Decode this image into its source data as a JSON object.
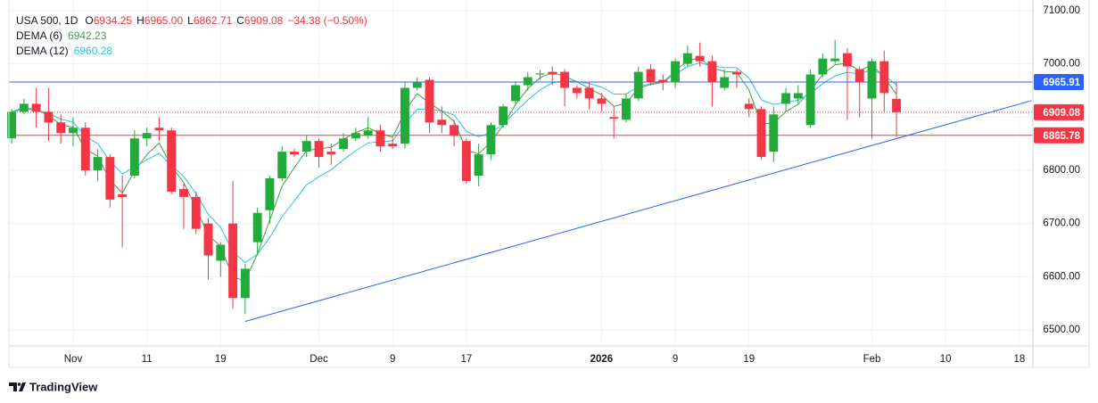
{
  "chart_data": {
    "type": "candlestick",
    "symbol": "USA 500, 1D",
    "ohlc_labels": [
      "O",
      "H",
      "L",
      "C"
    ],
    "ohlc_text": [
      "6934.25",
      "6965.00",
      "6862.71",
      "6909.08"
    ],
    "change_text": "−34.38 (−0.50%)",
    "indicators": [
      {
        "name": "DEMA (6)",
        "value": "6942.23",
        "color": "#43a047",
        "period": 6
      },
      {
        "name": "DEMA (12)",
        "value": "6960.28",
        "color": "#26c6da",
        "period": 12
      }
    ],
    "categories": [
      null,
      null,
      null,
      null,
      null,
      "Nov",
      null,
      null,
      null,
      null,
      null,
      "11",
      null,
      null,
      null,
      null,
      null,
      "19",
      null,
      null,
      null,
      null,
      null,
      null,
      null,
      "Dec",
      null,
      null,
      null,
      null,
      null,
      "9",
      null,
      null,
      null,
      null,
      null,
      "17",
      null,
      null,
      null,
      null,
      null,
      null,
      null,
      null,
      null,
      null,
      "2026",
      null,
      null,
      null,
      null,
      null,
      "9",
      null,
      null,
      null,
      null,
      null,
      "19",
      null,
      null,
      null,
      null,
      null,
      null,
      null,
      null,
      null,
      "Feb",
      null,
      null,
      null,
      null,
      null,
      "10",
      null,
      null,
      null,
      null,
      null,
      "18",
      null
    ],
    "open": [
      6860,
      6910,
      6925,
      6910,
      6890,
      6870,
      6880,
      6800,
      6825,
      6755,
      6790,
      6860,
      6880,
      6875,
      6765,
      6750,
      6700,
      6630,
      6700,
      6560,
      6665,
      6725,
      6785,
      6835,
      6835,
      6855,
      6835,
      6840,
      6860,
      6865,
      6875,
      6850,
      6850,
      6955,
      6970,
      6895,
      6885,
      6855,
      6790,
      6830,
      6885,
      6930,
      6960,
      6980,
      6985,
      6985,
      6955,
      6955,
      6935,
      6900,
      6895,
      6935,
      6990,
      6970,
      6965,
      7000,
      7015,
      7005,
      6955,
      6985,
      6925,
      6915,
      6835,
      6925,
      6935,
      6885,
      6980,
      7005,
      7020,
      6990,
      6935,
      7005,
      6934.25,
      null,
      null,
      null,
      null,
      null,
      null,
      null,
      null,
      null,
      null,
      null
    ],
    "high": [
      6915,
      6935,
      6955,
      6955,
      6905,
      6900,
      6890,
      6840,
      6830,
      6790,
      6875,
      6880,
      6900,
      6880,
      6775,
      6760,
      6710,
      6665,
      6780,
      6625,
      6730,
      6790,
      6845,
      6840,
      6865,
      6860,
      6850,
      6870,
      6880,
      6900,
      6885,
      6860,
      6965,
      6975,
      6975,
      6920,
      6895,
      6860,
      6850,
      6890,
      6925,
      6965,
      6985,
      6988,
      6995,
      6990,
      6960,
      6965,
      6945,
      6920,
      6945,
      6995,
      7000,
      6980,
      7010,
      7035,
      7040,
      7015,
      6990,
      6990,
      6935,
      6920,
      6920,
      6955,
      6960,
      6990,
      7020,
      7045,
      7030,
      6995,
      7010,
      7025,
      6965,
      null,
      null,
      null,
      null,
      null,
      null,
      null,
      null,
      null,
      null,
      null
    ],
    "low": [
      6850,
      6905,
      6880,
      6855,
      6850,
      6845,
      6790,
      6780,
      6730,
      6655,
      6785,
      6845,
      6855,
      6755,
      6690,
      6680,
      6595,
      6600,
      6540,
      6530,
      6640,
      6700,
      6780,
      6825,
      6825,
      6805,
      6810,
      6835,
      6855,
      6860,
      6835,
      6840,
      6840,
      6950,
      6870,
      6870,
      6845,
      6775,
      6770,
      6820,
      6880,
      6925,
      6950,
      6970,
      6960,
      6920,
      6935,
      6915,
      6910,
      6860,
      6890,
      6930,
      6960,
      6950,
      6955,
      6995,
      6995,
      6920,
      6950,
      6955,
      6900,
      6820,
      6815,
      6910,
      6925,
      6880,
      6975,
      7000,
      6895,
      6900,
      6860,
      6910,
      6862.71,
      null,
      null,
      null,
      null,
      null,
      null,
      null,
      null,
      null,
      null,
      null
    ],
    "close": [
      6910,
      6925,
      6910,
      6890,
      6870,
      6880,
      6800,
      6825,
      6745,
      6750,
      6860,
      6870,
      6875,
      6760,
      6750,
      6690,
      6640,
      6660,
      6560,
      6615,
      6720,
      6785,
      6835,
      6830,
      6855,
      6825,
      6830,
      6860,
      6870,
      6875,
      6845,
      6845,
      6955,
      6965,
      6890,
      6885,
      6865,
      6780,
      6830,
      6885,
      6920,
      6960,
      6975,
      6982,
      6980,
      6955,
      6945,
      6935,
      6925,
      6897,
      6935,
      6985,
      6965,
      6965,
      7005,
      7020,
      7005,
      6965,
      6975,
      6980,
      6915,
      6825,
      6905,
      6945,
      6945,
      6980,
      7010,
      7010,
      6995,
      6965,
      7005,
      6945,
      6909.08,
      null,
      null,
      null,
      null,
      null,
      null,
      null,
      null,
      null,
      null,
      null
    ],
    "up_color": "#22ab3a",
    "down_color": "#f23645",
    "ylim": [
      6470,
      7120
    ],
    "yticks": [
      {
        "value": 6500,
        "label": "6500.00"
      },
      {
        "value": 6600,
        "label": "6600.00"
      },
      {
        "value": 6700,
        "label": "6700.00"
      },
      {
        "value": 6800,
        "label": "6800.00"
      },
      {
        "value": 6900,
        "label": "6900.00"
      },
      {
        "value": 7000,
        "label": "7000.00"
      },
      {
        "value": 7100,
        "label": "7100.00"
      }
    ],
    "grid": true,
    "price_lines": [
      {
        "value": 6965.91,
        "color": "#2962ff",
        "style": "solid"
      },
      {
        "value": 6909.08,
        "color": "#f23645",
        "style": "dotted"
      },
      {
        "value": 6865.78,
        "color": "#f23645",
        "style": "solid"
      }
    ],
    "trendline": {
      "from": [
        19,
        6516
      ],
      "to": [
        83,
        6931
      ],
      "color": "#2962ff"
    },
    "footer": "TradingView"
  }
}
